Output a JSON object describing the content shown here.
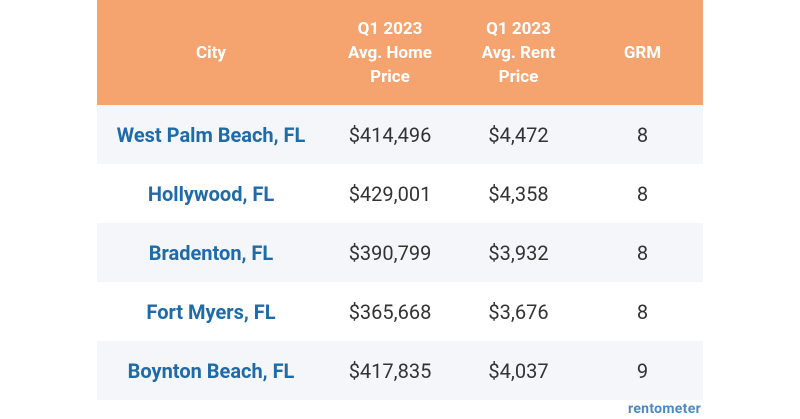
{
  "table": {
    "header": [
      [
        "City"
      ],
      [
        "Q1 2023",
        "Avg. Home",
        "Price"
      ],
      [
        "Q1 2023",
        "Avg. Rent",
        "Price"
      ],
      [
        "GRM"
      ]
    ],
    "rows": [
      [
        "West Palm Beach, FL",
        "$414,496",
        "$4,472",
        8
      ],
      [
        "Hollywood, FL",
        "$429,001",
        "$4,358",
        8
      ],
      [
        "Bradenton, FL",
        "$390,799",
        "$3,932",
        8
      ],
      [
        "Fort Myers, FL",
        "$365,668",
        "$3,676",
        8
      ],
      [
        "Boynton Beach, FL",
        "$417,835",
        "$4,037",
        9
      ]
    ]
  },
  "logo": "rentometer"
}
